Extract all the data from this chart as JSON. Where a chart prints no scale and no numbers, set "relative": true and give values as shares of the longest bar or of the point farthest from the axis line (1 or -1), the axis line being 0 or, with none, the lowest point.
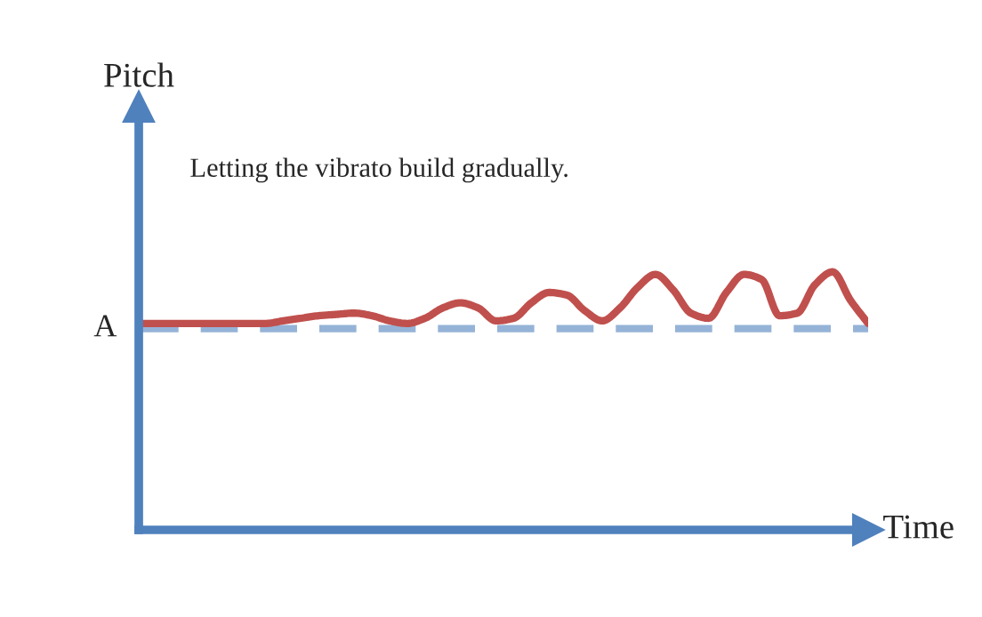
{
  "chart_data": {
    "type": "line",
    "relative": true,
    "xlabel": "Time",
    "annotations": [
      "Pitch",
      "Letting the vibrato build gradually."
    ],
    "categories": [
      null,
      null,
      null,
      null,
      null,
      null,
      null,
      null,
      null,
      null,
      null,
      null,
      null,
      null,
      null,
      null,
      null,
      null,
      null,
      null,
      null,
      null,
      null,
      null,
      null,
      null,
      null,
      null,
      null,
      null,
      null,
      null,
      null,
      null,
      null,
      null,
      null,
      null,
      null,
      null,
      null,
      null
    ],
    "series": [
      {
        "color": "#c0504d",
        "values": [
          0.8,
          0.8,
          0.8,
          0.8,
          0.8,
          0.8,
          0.8,
          0.8,
          0.81,
          0.82,
          0.83,
          0.835,
          0.84,
          0.83,
          0.81,
          0.8,
          0.82,
          0.86,
          0.88,
          0.86,
          0.81,
          0.82,
          0.88,
          0.92,
          0.91,
          0.85,
          0.81,
          0.86,
          0.94,
          0.99,
          0.93,
          0.84,
          0.82,
          0.92,
          0.99,
          0.97,
          0.83,
          0.84,
          0.95,
          1.0,
          0.89,
          0.8
        ]
      }
    ],
    "ref_lines": [
      {
        "axis": "y",
        "value": 0.78,
        "label": "A",
        "color": "#95b3d7",
        "line_style": "dashed"
      }
    ],
    "marker": "none",
    "line_style": "solid"
  }
}
